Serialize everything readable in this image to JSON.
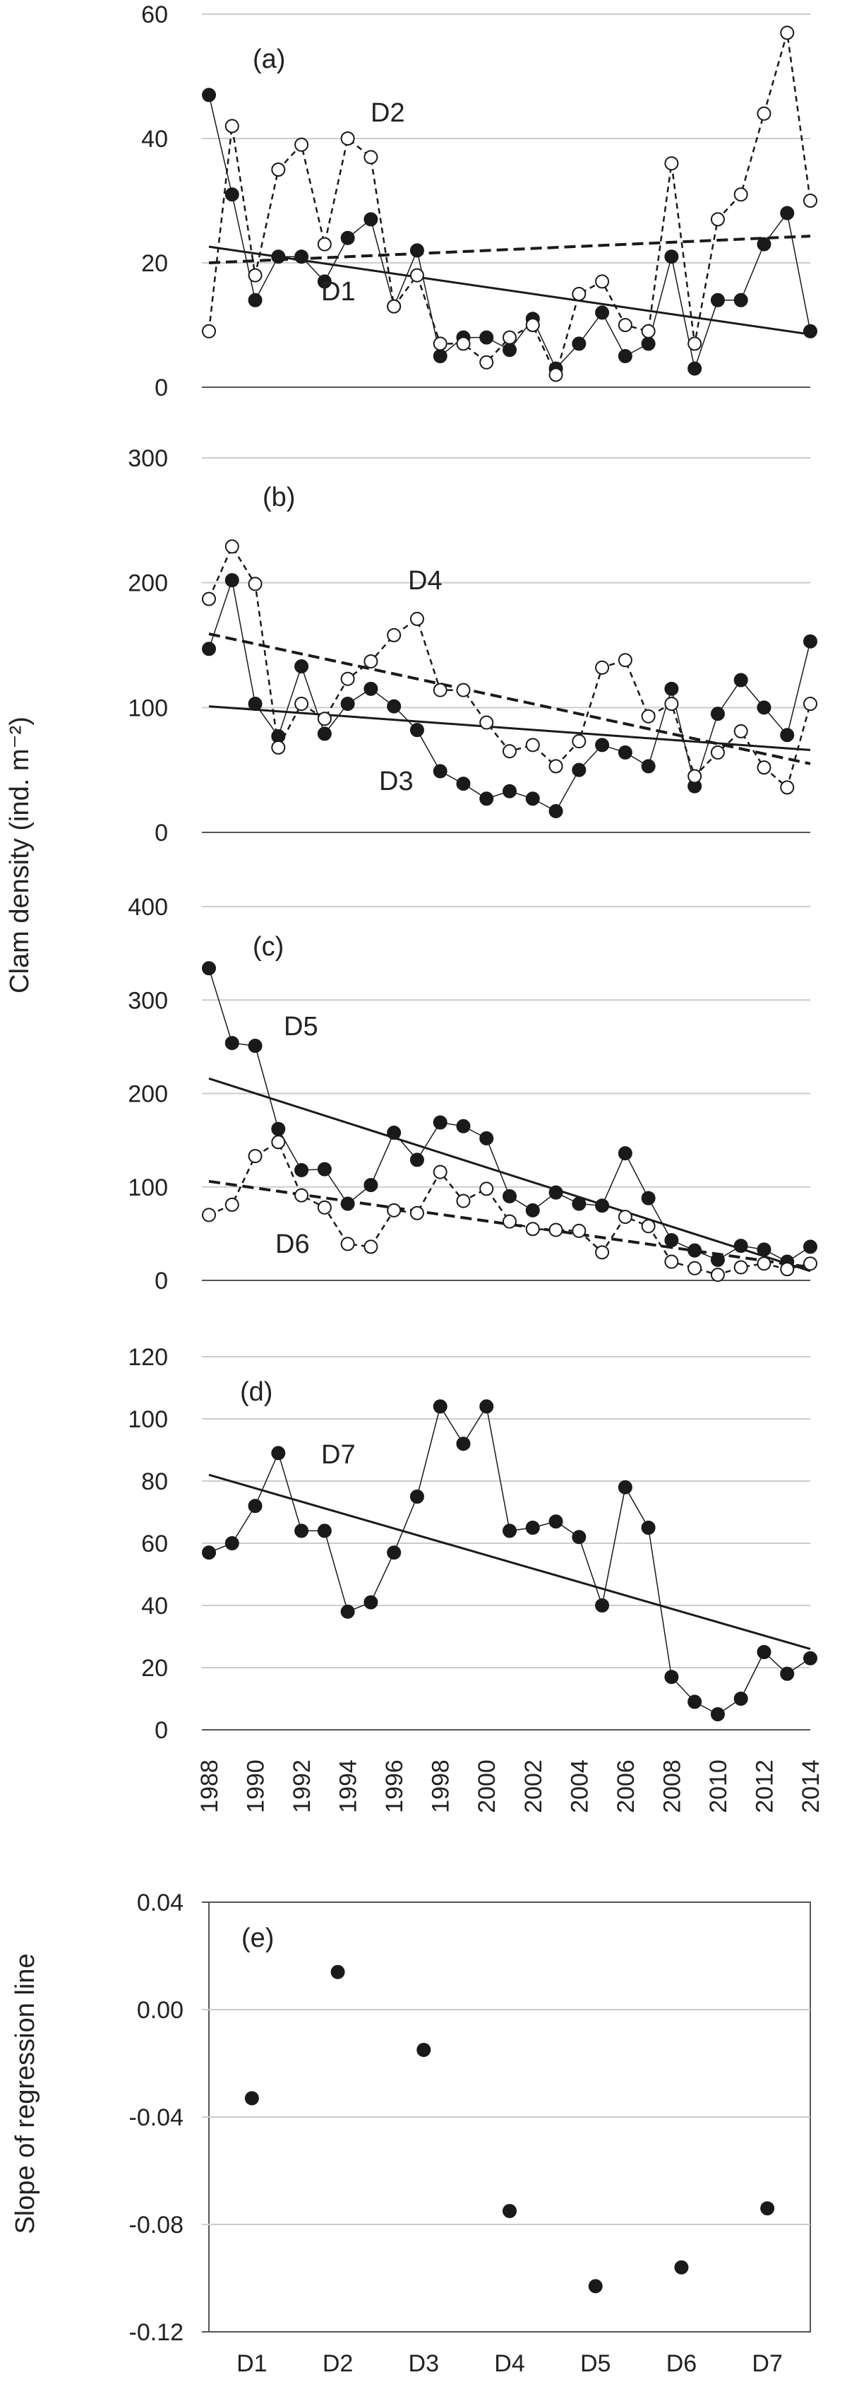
{
  "figure": {
    "ylabel_top": "Clam density (ind. m⁻²)",
    "ylabel_bottom": "Slope of regression line"
  },
  "colors": {
    "marker": "#1a1a1a",
    "line": "#1a1a1a",
    "grid": "#cccccc",
    "open_marker_fill": "#ffffff"
  },
  "chart_data": [
    {
      "type": "line",
      "panel": "(a)",
      "x": [
        1988,
        1989,
        1990,
        1991,
        1992,
        1993,
        1994,
        1995,
        1996,
        1997,
        1998,
        1999,
        2000,
        2001,
        2002,
        2003,
        2004,
        2005,
        2006,
        2007,
        2008,
        2009,
        2010,
        2011,
        2012,
        2013,
        2014
      ],
      "ylim": [
        0,
        60
      ],
      "yticks": [
        0,
        20,
        40,
        60
      ],
      "series": [
        {
          "name": "D1",
          "marker": "filled",
          "dash": false,
          "values": [
            47,
            31,
            14,
            21,
            21,
            17,
            24,
            27,
            13,
            22,
            5,
            8,
            8,
            6,
            11,
            3,
            7,
            12,
            5,
            7,
            21,
            3,
            14,
            14,
            23,
            28,
            9
          ],
          "trend": [
            22.6,
            8.5
          ]
        },
        {
          "name": "D2",
          "marker": "open",
          "dash": true,
          "values": [
            9,
            42,
            18,
            35,
            39,
            23,
            40,
            37,
            13,
            18,
            7,
            7,
            4,
            8,
            10,
            2,
            15,
            17,
            10,
            9,
            36,
            7,
            27,
            31,
            44,
            57,
            30
          ],
          "trend": [
            20,
            24.3
          ]
        }
      ]
    },
    {
      "type": "line",
      "panel": "(b)",
      "x": [
        1988,
        1989,
        1990,
        1991,
        1992,
        1993,
        1994,
        1995,
        1996,
        1997,
        1998,
        1999,
        2000,
        2001,
        2002,
        2003,
        2004,
        2005,
        2006,
        2007,
        2008,
        2009,
        2010,
        2011,
        2012,
        2013,
        2014
      ],
      "ylim": [
        0,
        300
      ],
      "yticks": [
        0,
        100,
        200,
        300
      ],
      "series": [
        {
          "name": "D3",
          "marker": "filled",
          "dash": false,
          "values": [
            147,
            202,
            103,
            77,
            133,
            79,
            103,
            115,
            101,
            82,
            49,
            39,
            27,
            33,
            27,
            17,
            50,
            70,
            64,
            53,
            115,
            37,
            95,
            122,
            100,
            78,
            153
          ],
          "trend": [
            101,
            66
          ]
        },
        {
          "name": "D4",
          "marker": "open",
          "dash": true,
          "values": [
            187,
            229,
            199,
            68,
            103,
            91,
            123,
            137,
            158,
            171,
            114,
            114,
            88,
            65,
            70,
            53,
            73,
            132,
            138,
            93,
            103,
            45,
            64,
            81,
            52,
            36,
            103
          ],
          "trend": [
            159,
            55
          ]
        }
      ]
    },
    {
      "type": "line",
      "panel": "(c)",
      "x": [
        1988,
        1989,
        1990,
        1991,
        1992,
        1993,
        1994,
        1995,
        1996,
        1997,
        1998,
        1999,
        2000,
        2001,
        2002,
        2003,
        2004,
        2005,
        2006,
        2007,
        2008,
        2009,
        2010,
        2011,
        2012,
        2013,
        2014
      ],
      "ylim": [
        0,
        400
      ],
      "yticks": [
        0,
        100,
        200,
        300,
        400
      ],
      "series": [
        {
          "name": "D5",
          "marker": "filled",
          "dash": false,
          "values": [
            334,
            254,
            251,
            162,
            118,
            119,
            82,
            102,
            158,
            129,
            169,
            165,
            152,
            90,
            75,
            94,
            82,
            80,
            136,
            88,
            43,
            32,
            22,
            37,
            33,
            20,
            36
          ],
          "trend": [
            216,
            10
          ]
        },
        {
          "name": "D6",
          "marker": "open",
          "dash": true,
          "values": [
            70,
            81,
            133,
            148,
            91,
            78,
            39,
            36,
            75,
            72,
            116,
            85,
            98,
            63,
            55,
            54,
            53,
            30,
            68,
            58,
            20,
            13,
            6,
            14,
            18,
            12,
            18
          ],
          "trend": [
            106,
            14
          ]
        }
      ]
    },
    {
      "type": "line",
      "panel": "(d)",
      "x": [
        1988,
        1989,
        1990,
        1991,
        1992,
        1993,
        1994,
        1995,
        1996,
        1997,
        1998,
        1999,
        2000,
        2001,
        2002,
        2003,
        2004,
        2005,
        2006,
        2007,
        2008,
        2009,
        2010,
        2011,
        2012,
        2013,
        2014
      ],
      "xtick_labels": [
        "1988",
        "1990",
        "1992",
        "1994",
        "1996",
        "1998",
        "2000",
        "2002",
        "2004",
        "2006",
        "2008",
        "2010",
        "2012",
        "2014"
      ],
      "ylim": [
        0,
        120
      ],
      "yticks": [
        0,
        20,
        40,
        60,
        80,
        100,
        120
      ],
      "series": [
        {
          "name": "D7",
          "marker": "filled",
          "dash": false,
          "values": [
            57,
            60,
            72,
            89,
            64,
            64,
            38,
            41,
            57,
            75,
            104,
            92,
            104,
            64,
            65,
            67,
            62,
            40,
            78,
            65,
            17,
            9,
            5,
            10,
            25,
            18,
            23
          ],
          "trend": [
            82,
            26
          ]
        }
      ]
    },
    {
      "type": "scatter",
      "panel": "(e)",
      "categories": [
        "D1",
        "D2",
        "D3",
        "D4",
        "D5",
        "D6",
        "D7"
      ],
      "values": [
        -0.033,
        0.014,
        -0.015,
        -0.075,
        -0.103,
        -0.096,
        -0.074
      ],
      "ylim": [
        -0.12,
        0.04
      ],
      "yticks": [
        "0.04",
        "0.00",
        "-0.04",
        "-0.08",
        "-0.12"
      ],
      "ylabel": "Slope of regression line"
    }
  ]
}
